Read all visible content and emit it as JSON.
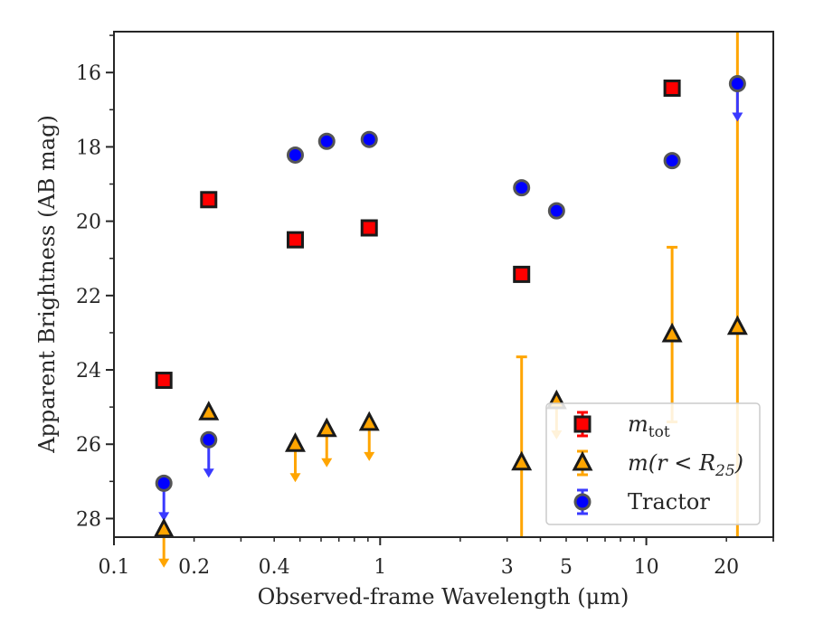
{
  "chart_data": {
    "type": "scatter",
    "xlabel": "Observed-frame Wavelength (μm)",
    "ylabel": "Apparent Brightness (AB mag)",
    "x_scale": "log",
    "y_inverted": true,
    "xlim": [
      0.1,
      30
    ],
    "ylim": [
      28.5,
      14.9
    ],
    "x_ticks": [
      {
        "value": 0.1,
        "label": "0.1"
      },
      {
        "value": 0.2,
        "label": "0.2"
      },
      {
        "value": 0.4,
        "label": "0.4"
      },
      {
        "value": 1,
        "label": "1"
      },
      {
        "value": 3,
        "label": "3"
      },
      {
        "value": 5,
        "label": "5"
      },
      {
        "value": 10,
        "label": "10"
      },
      {
        "value": 20,
        "label": "20"
      }
    ],
    "y_ticks": [
      {
        "value": 16,
        "label": "16"
      },
      {
        "value": 18,
        "label": "18"
      },
      {
        "value": 20,
        "label": "20"
      },
      {
        "value": 22,
        "label": "22"
      },
      {
        "value": 24,
        "label": "24"
      },
      {
        "value": 26,
        "label": "26"
      },
      {
        "value": 28,
        "label": "28"
      }
    ],
    "grid": false,
    "legend_position": "lower-right",
    "series": [
      {
        "key": "mtot",
        "marker": "square",
        "color": "#ff0000",
        "errcolor": "#ff0000",
        "points": [
          {
            "x": 0.154,
            "y": 24.28
          },
          {
            "x": 0.227,
            "y": 19.42
          },
          {
            "x": 0.48,
            "y": 20.5
          },
          {
            "x": 0.91,
            "y": 20.18
          },
          {
            "x": 3.4,
            "y": 21.43
          },
          {
            "x": 12.5,
            "y": 16.42
          }
        ]
      },
      {
        "key": "mr25",
        "marker": "triangle",
        "color": "#ffa500",
        "errcolor": "#ffa500",
        "points": [
          {
            "x": 0.154,
            "y": 28.3,
            "upper_limit": true
          },
          {
            "x": 0.227,
            "y": 25.15
          },
          {
            "x": 0.48,
            "y": 26.0,
            "upper_limit": true
          },
          {
            "x": 0.63,
            "y": 25.6,
            "upper_limit": true
          },
          {
            "x": 0.91,
            "y": 25.43,
            "upper_limit": true
          },
          {
            "x": 3.4,
            "y": 26.5,
            "err": [
              2.85,
              2.0
            ]
          },
          {
            "x": 4.6,
            "y": 24.85,
            "upper_limit": true
          },
          {
            "x": 12.5,
            "y": 23.05,
            "err": [
              2.35,
              2.35
            ]
          },
          {
            "x": 22.0,
            "y": 22.85,
            "err": [
              8.0,
              8.0
            ]
          }
        ]
      },
      {
        "key": "tractor",
        "marker": "circle",
        "color": "#0000ff",
        "errcolor": "#3a3aff",
        "points": [
          {
            "x": 0.154,
            "y": 27.05,
            "upper_limit": true
          },
          {
            "x": 0.227,
            "y": 25.88,
            "upper_limit": true
          },
          {
            "x": 0.48,
            "y": 18.22
          },
          {
            "x": 0.63,
            "y": 17.85
          },
          {
            "x": 0.91,
            "y": 17.8
          },
          {
            "x": 3.4,
            "y": 19.1
          },
          {
            "x": 4.6,
            "y": 19.72
          },
          {
            "x": 12.5,
            "y": 18.37
          },
          {
            "x": 22.0,
            "y": 16.3,
            "upper_limit": true
          }
        ]
      }
    ],
    "legend": [
      {
        "key": "mtot",
        "main": "m",
        "sub": "tot",
        "rest": ""
      },
      {
        "key": "mr25",
        "main": "m(r < R",
        "sub": "25",
        "rest": ")"
      },
      {
        "key": "tractor",
        "main": "Tractor",
        "sub": "",
        "rest": ""
      }
    ]
  }
}
